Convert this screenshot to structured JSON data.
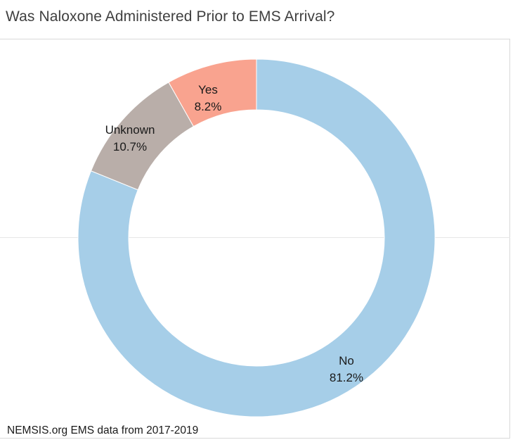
{
  "chart_data": {
    "type": "pie",
    "style": "donut",
    "title": "Was Naloxone Administered Prior to EMS Arrival?",
    "slices": [
      {
        "label": "No",
        "value": 81.2,
        "value_label": "81.2%",
        "color": "#a6cee8"
      },
      {
        "label": "Unknown",
        "value": 10.7,
        "value_label": "10.7%",
        "color": "#b9aea9"
      },
      {
        "label": "Yes",
        "value": 8.2,
        "value_label": "8.2%",
        "color": "#f9a38f"
      }
    ],
    "start": "top, clockwise",
    "legend": "none"
  },
  "footnote": "NEMSIS.org EMS data from 2017-2019"
}
